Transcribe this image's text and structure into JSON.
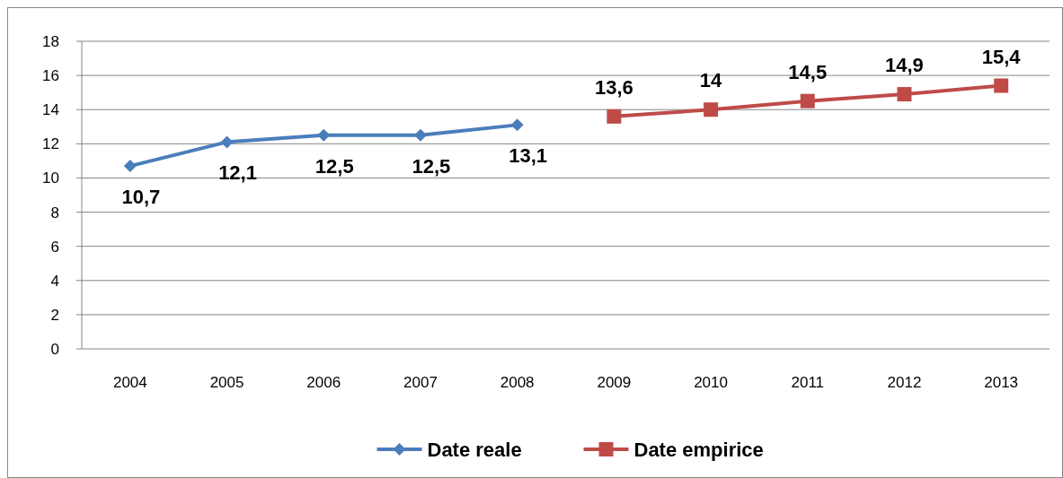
{
  "chart_data": {
    "type": "line",
    "categories": [
      "2004",
      "2005",
      "2006",
      "2007",
      "2008",
      "2009",
      "2010",
      "2011",
      "2012",
      "2013"
    ],
    "series": [
      {
        "name": "Date reale",
        "color": "#4a7ebb",
        "marker": "diamond",
        "values": [
          10.7,
          12.1,
          12.5,
          12.5,
          13.1,
          null,
          null,
          null,
          null,
          null
        ],
        "value_labels": [
          "10,7",
          "12,1",
          "12,5",
          "12,5",
          "13,1",
          null,
          null,
          null,
          null,
          null
        ]
      },
      {
        "name": "Date empirice",
        "color": "#be4b48",
        "marker": "square",
        "values": [
          null,
          null,
          null,
          null,
          null,
          13.6,
          14,
          14.5,
          14.9,
          15.4
        ],
        "value_labels": [
          null,
          null,
          null,
          null,
          null,
          "13,6",
          "14",
          "14,5",
          "14,9",
          "15,4"
        ]
      }
    ],
    "ylim": [
      0,
      18
    ],
    "yticks": [
      0,
      2,
      4,
      6,
      8,
      10,
      12,
      14,
      16,
      18
    ],
    "grid": "y",
    "legend": "bottom"
  }
}
